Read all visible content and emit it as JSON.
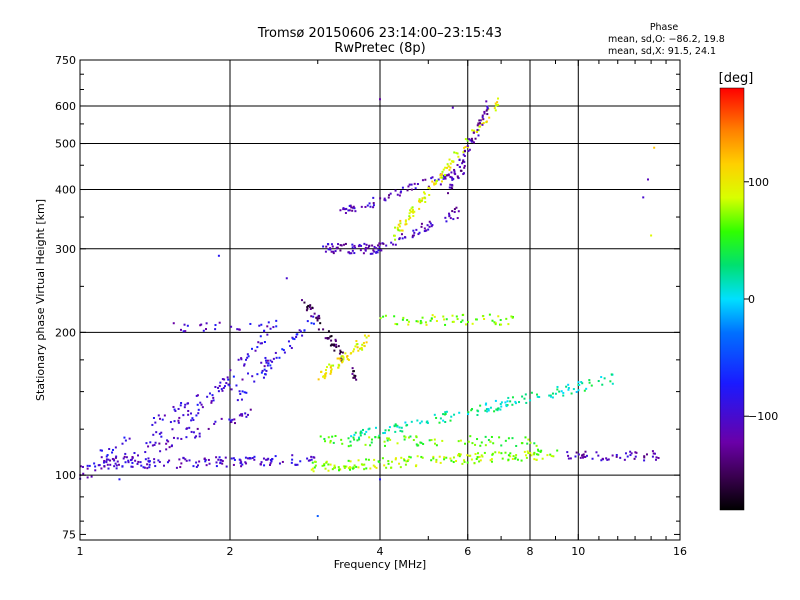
{
  "title_line1": "Tromsø 20150606 23:14:00–23:15:43",
  "title_line2": "RwPretec (8p)",
  "phase_info": {
    "heading": "Phase",
    "line1": "mean, sd,O: −86.2, 19.8",
    "line2": "mean, sd,X:  91.5, 24.1"
  },
  "colorbar": {
    "label": "[deg]",
    "ticks": [
      "100",
      "0",
      "−100"
    ],
    "range": [
      -180,
      180
    ],
    "scale": "rainbow (black→purple→blue→cyan→green→yellow→orange→red)"
  },
  "chart_data": {
    "type": "scatter",
    "title": "Tromsø 20150606 23:14:00–23:15:43",
    "subtitle": "RwPretec (8p)",
    "xlabel": "Frequency [MHz]",
    "ylabel": "Stationary phase Virtual Height [km]",
    "xscale": "log",
    "yscale": "log",
    "xlim": [
      1,
      16
    ],
    "ylim": [
      73,
      750
    ],
    "xticks": [
      1,
      2,
      4,
      6,
      8,
      10,
      16
    ],
    "xtick_labels": [
      "1",
      "2",
      "4",
      "6",
      "8",
      "10",
      "16"
    ],
    "xgrid": [
      2,
      4,
      6,
      8,
      10
    ],
    "yticks": [
      75,
      100,
      200,
      300,
      400,
      500,
      600,
      750
    ],
    "ytick_labels": [
      "75",
      "100",
      "200",
      "300",
      "400",
      "500",
      "600",
      "750"
    ],
    "ygrid": [
      100,
      200,
      300,
      400,
      500,
      600
    ],
    "grid": true,
    "series": [
      {
        "traces": [
          {
            "type": "line",
            "freq_range": [
              1.0,
              3.0
            ],
            "height": [
              105,
              108
            ],
            "phase": -100,
            "n": 140
          },
          {
            "type": "line",
            "freq_range": [
              1.0,
              2.2
            ],
            "height": [
              100,
              135
            ],
            "phase": -105,
            "n": 70
          },
          {
            "type": "line",
            "freq_range": [
              1.1,
              2.0
            ],
            "height": [
              110,
              160
            ],
            "phase": -95,
            "n": 40
          },
          {
            "type": "line",
            "freq_range": [
              1.3,
              2.5
            ],
            "height": [
              113,
              180
            ],
            "phase": -100,
            "n": 45
          },
          {
            "type": "line",
            "freq_range": [
              1.6,
              2.5
            ],
            "height": [
              125,
              210
            ],
            "phase": -90,
            "n": 40
          },
          {
            "type": "line",
            "freq_range": [
              2.0,
              3.0
            ],
            "height": [
              140,
              215
            ],
            "phase": -80,
            "n": 45
          },
          {
            "type": "line",
            "freq_range": [
              1.5,
              2.5
            ],
            "height": [
              205,
              205
            ],
            "phase": -100,
            "n": 25
          },
          {
            "type": "line",
            "freq_range": [
              2.8,
              3.6
            ],
            "height": [
              235,
              160
            ],
            "phase": -150,
            "n": 60
          },
          {
            "type": "line",
            "freq_range": [
              3.0,
              3.8
            ],
            "height": [
              160,
              195
            ],
            "phase": 100,
            "n": 60
          },
          {
            "type": "line",
            "freq_range": [
              3.1,
              4.0
            ],
            "height": [
              300,
              300
            ],
            "phase": -110,
            "n": 60
          },
          {
            "type": "line",
            "freq_range": [
              3.3,
              6.0
            ],
            "height": [
              355,
              440
            ],
            "phase": -110,
            "n": 80
          },
          {
            "type": "line",
            "freq_range": [
              4.0,
              5.8
            ],
            "height": [
              300,
              360
            ],
            "phase": -110,
            "n": 50
          },
          {
            "type": "line",
            "freq_range": [
              4.2,
              7.0
            ],
            "height": [
              315,
              620
            ],
            "phase": 95,
            "n": 110
          },
          {
            "type": "line",
            "freq_range": [
              5.5,
              6.6
            ],
            "height": [
              400,
              600
            ],
            "phase": -120,
            "n": 60
          },
          {
            "type": "line",
            "freq_range": [
              2.9,
              9.0
            ],
            "height": [
              104,
              111
            ],
            "phase": 75,
            "n": 170
          },
          {
            "type": "line",
            "freq_range": [
              9.5,
              14.5
            ],
            "height": [
              110,
              110
            ],
            "phase": -110,
            "n": 50
          },
          {
            "type": "line",
            "freq_range": [
              3.0,
              8.5
            ],
            "height": [
              118,
              118
            ],
            "phase": 60,
            "n": 80
          },
          {
            "type": "line",
            "freq_range": [
              4.0,
              7.5
            ],
            "height": [
              212,
              213
            ],
            "phase": 70,
            "n": 60
          },
          {
            "type": "line",
            "freq_range": [
              3.5,
              12.0
            ],
            "height": [
              120,
              160
            ],
            "phase": 20,
            "n": 150
          }
        ],
        "isolated_points": [
          {
            "x": 4.0,
            "y": 620,
            "phase": -120
          },
          {
            "x": 5.6,
            "y": 595,
            "phase": -110
          },
          {
            "x": 14.2,
            "y": 490,
            "phase": 120
          },
          {
            "x": 13.8,
            "y": 420,
            "phase": -110
          },
          {
            "x": 13.5,
            "y": 385,
            "phase": -100
          },
          {
            "x": 14.0,
            "y": 320,
            "phase": 90
          },
          {
            "x": 3.0,
            "y": 82,
            "phase": -40
          },
          {
            "x": 1.2,
            "y": 98,
            "phase": -80
          },
          {
            "x": 4.0,
            "y": 98,
            "phase": -80
          },
          {
            "x": 1.9,
            "y": 290,
            "phase": -80
          },
          {
            "x": 2.6,
            "y": 260,
            "phase": -100
          }
        ]
      }
    ]
  }
}
